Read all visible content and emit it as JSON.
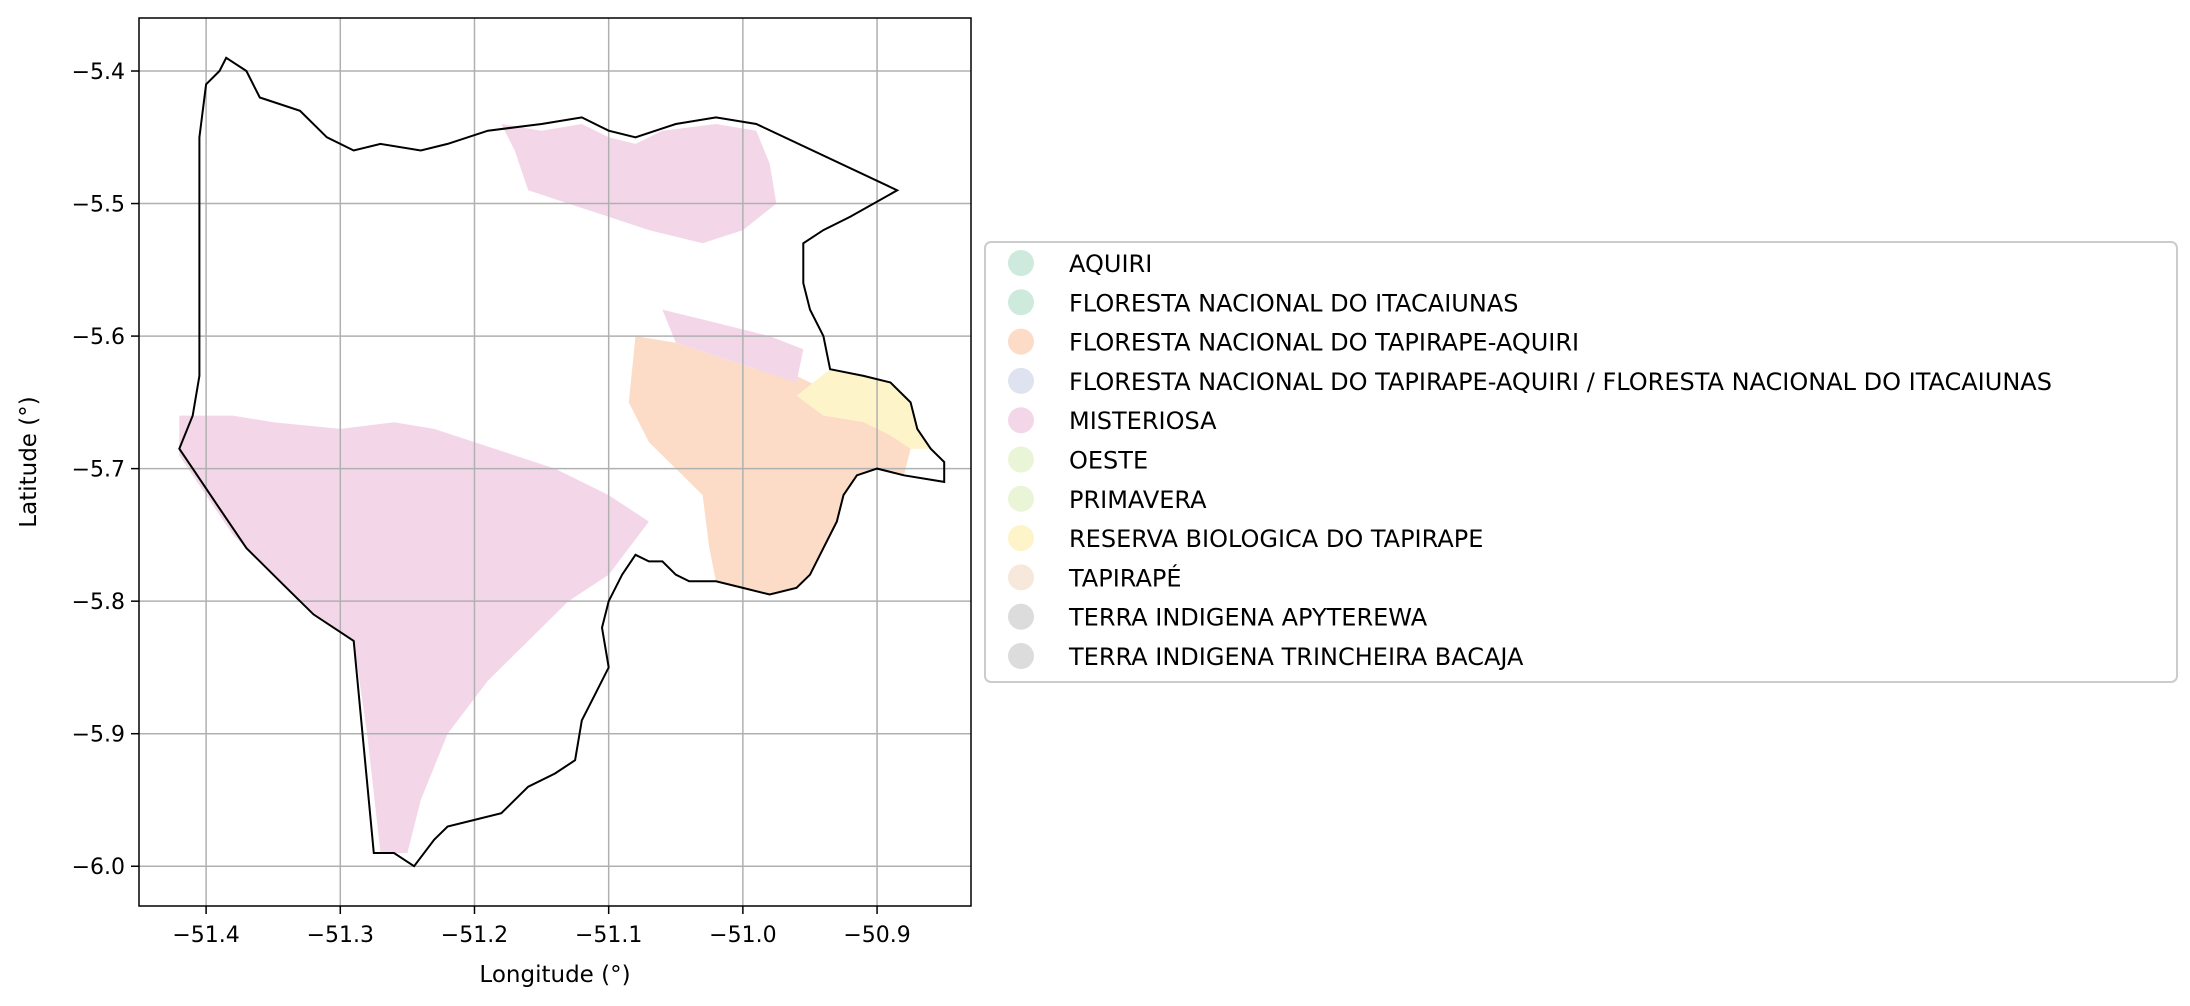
{
  "chart_data": {
    "type": "map",
    "xlabel": "Longitude (°)",
    "ylabel": "Latitude (°)",
    "xlim": [
      -51.45,
      -50.83
    ],
    "ylim": [
      -6.03,
      -5.36
    ],
    "xticks": [
      {
        "value": -51.4,
        "label": "−51.4"
      },
      {
        "value": -51.3,
        "label": "−51.3"
      },
      {
        "value": -51.2,
        "label": "−51.2"
      },
      {
        "value": -51.1,
        "label": "−51.1"
      },
      {
        "value": -51.0,
        "label": "−51.0"
      },
      {
        "value": -50.9,
        "label": "−50.9"
      }
    ],
    "yticks": [
      {
        "value": -5.4,
        "label": "−5.4"
      },
      {
        "value": -5.5,
        "label": "−5.5"
      },
      {
        "value": -5.6,
        "label": "−5.6"
      },
      {
        "value": -5.7,
        "label": "−5.7"
      },
      {
        "value": -5.8,
        "label": "−5.8"
      },
      {
        "value": -5.9,
        "label": "−5.9"
      },
      {
        "value": -6.0,
        "label": "−6.0"
      }
    ],
    "grid": true,
    "legend_placement": "right",
    "legend": [
      {
        "label": "AQUIRI",
        "color": "#cdeadd"
      },
      {
        "label": "FLORESTA NACIONAL DO ITACAIUNAS",
        "color": "#cdeadd"
      },
      {
        "label": "FLORESTA NACIONAL DO TAPIRAPE-AQUIRI",
        "color": "#fcdcc7"
      },
      {
        "label": "FLORESTA NACIONAL DO TAPIRAPE-AQUIRI / FLORESTA NACIONAL DO ITACAIUNAS",
        "color": "#dfe3f0"
      },
      {
        "label": "MISTERIOSA",
        "color": "#f3d7e9"
      },
      {
        "label": "OESTE",
        "color": "#eaf5d8"
      },
      {
        "label": "PRIMAVERA",
        "color": "#eaf5d8"
      },
      {
        "label": "RESERVA BIOLOGICA DO TAPIRAPE",
        "color": "#fdf4c9"
      },
      {
        "label": "TAPIRAPÉ",
        "color": "#f6e8db"
      },
      {
        "label": "TERRA INDIGENA APYTEREWA",
        "color": "#dcdcdc"
      },
      {
        "label": "TERRA INDIGENA TRINCHEIRA BACAJA",
        "color": "#dcdcdc"
      }
    ],
    "boundary": [
      [
        -51.4,
        -5.41
      ],
      [
        -51.39,
        -5.4
      ],
      [
        -51.385,
        -5.39
      ],
      [
        -51.37,
        -5.4
      ],
      [
        -51.36,
        -5.42
      ],
      [
        -51.33,
        -5.43
      ],
      [
        -51.31,
        -5.45
      ],
      [
        -51.29,
        -5.46
      ],
      [
        -51.27,
        -5.455
      ],
      [
        -51.24,
        -5.46
      ],
      [
        -51.22,
        -5.455
      ],
      [
        -51.19,
        -5.445
      ],
      [
        -51.15,
        -5.44
      ],
      [
        -51.12,
        -5.435
      ],
      [
        -51.1,
        -5.445
      ],
      [
        -51.08,
        -5.45
      ],
      [
        -51.05,
        -5.44
      ],
      [
        -51.02,
        -5.435
      ],
      [
        -50.99,
        -5.44
      ],
      [
        -50.885,
        -5.49
      ],
      [
        -50.92,
        -5.51
      ],
      [
        -50.94,
        -5.52
      ],
      [
        -50.955,
        -5.53
      ],
      [
        -50.955,
        -5.56
      ],
      [
        -50.95,
        -5.58
      ],
      [
        -50.94,
        -5.6
      ],
      [
        -50.935,
        -5.625
      ],
      [
        -50.91,
        -5.63
      ],
      [
        -50.89,
        -5.635
      ],
      [
        -50.875,
        -5.65
      ],
      [
        -50.87,
        -5.67
      ],
      [
        -50.86,
        -5.685
      ],
      [
        -50.85,
        -5.695
      ],
      [
        -50.85,
        -5.71
      ],
      [
        -50.88,
        -5.705
      ],
      [
        -50.9,
        -5.7
      ],
      [
        -50.915,
        -5.705
      ],
      [
        -50.925,
        -5.72
      ],
      [
        -50.93,
        -5.74
      ],
      [
        -50.94,
        -5.76
      ],
      [
        -50.95,
        -5.78
      ],
      [
        -50.96,
        -5.79
      ],
      [
        -50.98,
        -5.795
      ],
      [
        -51.0,
        -5.79
      ],
      [
        -51.02,
        -5.785
      ],
      [
        -51.04,
        -5.785
      ],
      [
        -51.05,
        -5.78
      ],
      [
        -51.06,
        -5.77
      ],
      [
        -51.07,
        -5.77
      ],
      [
        -51.08,
        -5.765
      ],
      [
        -51.09,
        -5.78
      ],
      [
        -51.1,
        -5.8
      ],
      [
        -51.105,
        -5.82
      ],
      [
        -51.1,
        -5.85
      ],
      [
        -51.11,
        -5.87
      ],
      [
        -51.12,
        -5.89
      ],
      [
        -51.125,
        -5.92
      ],
      [
        -51.14,
        -5.93
      ],
      [
        -51.16,
        -5.94
      ],
      [
        -51.18,
        -5.96
      ],
      [
        -51.2,
        -5.965
      ],
      [
        -51.22,
        -5.97
      ],
      [
        -51.23,
        -5.98
      ],
      [
        -51.245,
        -6.0
      ],
      [
        -51.26,
        -5.99
      ],
      [
        -51.275,
        -5.99
      ],
      [
        -51.29,
        -5.83
      ],
      [
        -51.32,
        -5.81
      ],
      [
        -51.34,
        -5.79
      ],
      [
        -51.37,
        -5.76
      ],
      [
        -51.39,
        -5.73
      ],
      [
        -51.41,
        -5.7
      ],
      [
        -51.42,
        -5.685
      ],
      [
        -51.41,
        -5.66
      ],
      [
        -51.405,
        -5.63
      ],
      [
        -51.405,
        -5.6
      ],
      [
        -51.405,
        -5.57
      ],
      [
        -51.405,
        -5.53
      ],
      [
        -51.405,
        -5.49
      ],
      [
        -51.405,
        -5.45
      ],
      [
        -51.4,
        -5.41
      ]
    ],
    "regions": [
      {
        "name": "FLORESTA NACIONAL DO TAPIRAPE-AQUIRI",
        "color": "#fcdcc7",
        "polygon": [
          [
            -51.08,
            -5.6
          ],
          [
            -51.05,
            -5.605
          ],
          [
            -51.02,
            -5.615
          ],
          [
            -50.99,
            -5.625
          ],
          [
            -50.96,
            -5.63
          ],
          [
            -50.94,
            -5.64
          ],
          [
            -50.92,
            -5.66
          ],
          [
            -50.89,
            -5.67
          ],
          [
            -50.875,
            -5.685
          ],
          [
            -50.88,
            -5.705
          ],
          [
            -50.9,
            -5.7
          ],
          [
            -50.915,
            -5.705
          ],
          [
            -50.925,
            -5.72
          ],
          [
            -50.93,
            -5.74
          ],
          [
            -50.94,
            -5.76
          ],
          [
            -50.95,
            -5.78
          ],
          [
            -50.96,
            -5.79
          ],
          [
            -50.98,
            -5.795
          ],
          [
            -51.0,
            -5.79
          ],
          [
            -51.02,
            -5.785
          ],
          [
            -51.025,
            -5.76
          ],
          [
            -51.03,
            -5.72
          ],
          [
            -51.05,
            -5.7
          ],
          [
            -51.07,
            -5.68
          ],
          [
            -51.085,
            -5.65
          ]
        ]
      },
      {
        "name": "RESERVA BIOLOGICA DO TAPIRAPE",
        "color": "#fdf4c9",
        "polygon": [
          [
            -50.96,
            -5.645
          ],
          [
            -50.935,
            -5.625
          ],
          [
            -50.91,
            -5.63
          ],
          [
            -50.89,
            -5.635
          ],
          [
            -50.875,
            -5.65
          ],
          [
            -50.87,
            -5.67
          ],
          [
            -50.86,
            -5.685
          ],
          [
            -50.875,
            -5.685
          ],
          [
            -50.89,
            -5.675
          ],
          [
            -50.91,
            -5.665
          ],
          [
            -50.94,
            -5.66
          ]
        ]
      },
      {
        "name": "MISTERIOSA",
        "color": "#f3d7e9",
        "polygon": [
          [
            -51.42,
            -5.66
          ],
          [
            -51.38,
            -5.66
          ],
          [
            -51.35,
            -5.665
          ],
          [
            -51.3,
            -5.67
          ],
          [
            -51.26,
            -5.665
          ],
          [
            -51.23,
            -5.67
          ],
          [
            -51.2,
            -5.68
          ],
          [
            -51.17,
            -5.69
          ],
          [
            -51.14,
            -5.7
          ],
          [
            -51.1,
            -5.72
          ],
          [
            -51.07,
            -5.74
          ],
          [
            -51.1,
            -5.78
          ],
          [
            -51.13,
            -5.8
          ],
          [
            -51.16,
            -5.83
          ],
          [
            -51.19,
            -5.86
          ],
          [
            -51.22,
            -5.9
          ],
          [
            -51.24,
            -5.95
          ],
          [
            -51.25,
            -5.99
          ],
          [
            -51.27,
            -5.99
          ],
          [
            -51.28,
            -5.9
          ],
          [
            -51.29,
            -5.83
          ],
          [
            -51.32,
            -5.81
          ],
          [
            -51.35,
            -5.78
          ],
          [
            -51.38,
            -5.75
          ],
          [
            -51.4,
            -5.72
          ],
          [
            -51.42,
            -5.69
          ]
        ]
      },
      {
        "name": "MISTERIOSA",
        "color": "#f3d7e9",
        "polygon": [
          [
            -51.18,
            -5.44
          ],
          [
            -51.15,
            -5.445
          ],
          [
            -51.12,
            -5.44
          ],
          [
            -51.1,
            -5.45
          ],
          [
            -51.08,
            -5.455
          ],
          [
            -51.06,
            -5.445
          ],
          [
            -51.02,
            -5.44
          ],
          [
            -50.99,
            -5.445
          ],
          [
            -50.98,
            -5.47
          ],
          [
            -50.975,
            -5.5
          ],
          [
            -51.0,
            -5.52
          ],
          [
            -51.03,
            -5.53
          ],
          [
            -51.07,
            -5.52
          ],
          [
            -51.1,
            -5.51
          ],
          [
            -51.13,
            -5.5
          ],
          [
            -51.16,
            -5.49
          ],
          [
            -51.17,
            -5.46
          ]
        ]
      },
      {
        "name": "MISTERIOSA",
        "color": "#f3d7e9",
        "polygon": [
          [
            -51.06,
            -5.58
          ],
          [
            -51.02,
            -5.59
          ],
          [
            -50.98,
            -5.6
          ],
          [
            -50.955,
            -5.61
          ],
          [
            -50.96,
            -5.635
          ],
          [
            -50.99,
            -5.625
          ],
          [
            -51.02,
            -5.615
          ],
          [
            -51.05,
            -5.605
          ]
        ]
      }
    ]
  }
}
